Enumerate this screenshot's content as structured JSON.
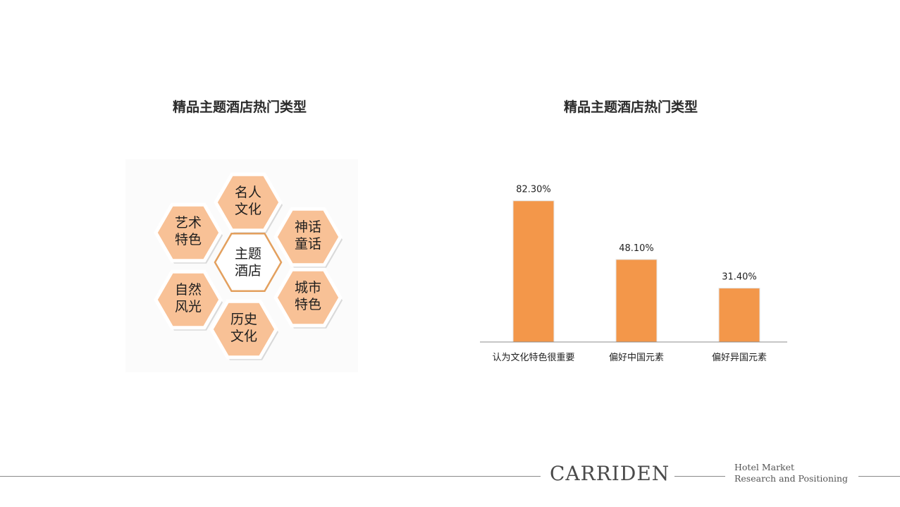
{
  "left_panel": {
    "title": "精品主题酒店热门类型",
    "center": {
      "line1": "主题",
      "line2": "酒店"
    },
    "hexagons": [
      {
        "line1": "名人",
        "line2": "文化"
      },
      {
        "line1": "艺术",
        "line2": "特色"
      },
      {
        "line1": "神话",
        "line2": "童话"
      },
      {
        "line1": "自然",
        "line2": "风光"
      },
      {
        "line1": "城市",
        "line2": "特色"
      },
      {
        "line1": "历史",
        "line2": "文化"
      }
    ]
  },
  "chart_data": {
    "type": "bar",
    "title": "精品主题酒店热门类型",
    "categories": [
      "认为文化特色很重要",
      "偏好中国元素",
      "偏好异国元素"
    ],
    "values": [
      82.3,
      48.1,
      31.4
    ],
    "data_labels": [
      "82.30%",
      "48.10%",
      "31.40%"
    ],
    "ylim": [
      0,
      90
    ],
    "grid": false,
    "xlabel": "",
    "ylabel": "",
    "bar_color": "#f3974a"
  },
  "footer": {
    "brand": "CARRIDEN",
    "tagline_line1": "Hotel Market",
    "tagline_line2": "Research and Positioning"
  },
  "colors": {
    "hex_fill": "#f8c196",
    "hex_border": "#ffffff",
    "center_border": "#e3a05e",
    "bar": "#f3974a",
    "axis": "#8c8c8c"
  }
}
